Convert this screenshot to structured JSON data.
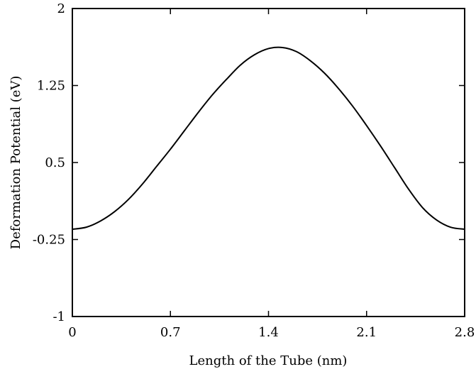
{
  "chart_data": {
    "type": "line",
    "title": "",
    "xlabel": "Length of the Tube (nm)",
    "ylabel": "Deformation Potential (eV)",
    "xlim": [
      0,
      2.8
    ],
    "ylim": [
      -1,
      2
    ],
    "x_ticks": [
      0,
      0.7,
      1.4,
      2.1,
      2.8
    ],
    "x_tick_labels": [
      "0",
      "0.7",
      "1.4",
      "2.1",
      "2.8"
    ],
    "y_ticks": [
      -1,
      -0.25,
      0.5,
      1.25,
      2
    ],
    "y_tick_labels": [
      "-1",
      "-0.25",
      "0.5",
      "1.25",
      "2"
    ],
    "grid": false,
    "series": [
      {
        "color": "#000000",
        "x": [
          0,
          0.1,
          0.2,
          0.3,
          0.4,
          0.5,
          0.6,
          0.7,
          0.8,
          0.9,
          1.0,
          1.1,
          1.2,
          1.3,
          1.4,
          1.5,
          1.6,
          1.7,
          1.8,
          1.9,
          2.0,
          2.1,
          2.2,
          2.3,
          2.4,
          2.5,
          2.6,
          2.7,
          2.8
        ],
        "y": [
          -0.15,
          -0.13,
          -0.07,
          0.02,
          0.14,
          0.29,
          0.46,
          0.63,
          0.81,
          0.99,
          1.16,
          1.31,
          1.45,
          1.55,
          1.61,
          1.62,
          1.58,
          1.49,
          1.37,
          1.22,
          1.05,
          0.86,
          0.66,
          0.45,
          0.24,
          0.06,
          -0.06,
          -0.13,
          -0.15
        ]
      }
    ]
  }
}
